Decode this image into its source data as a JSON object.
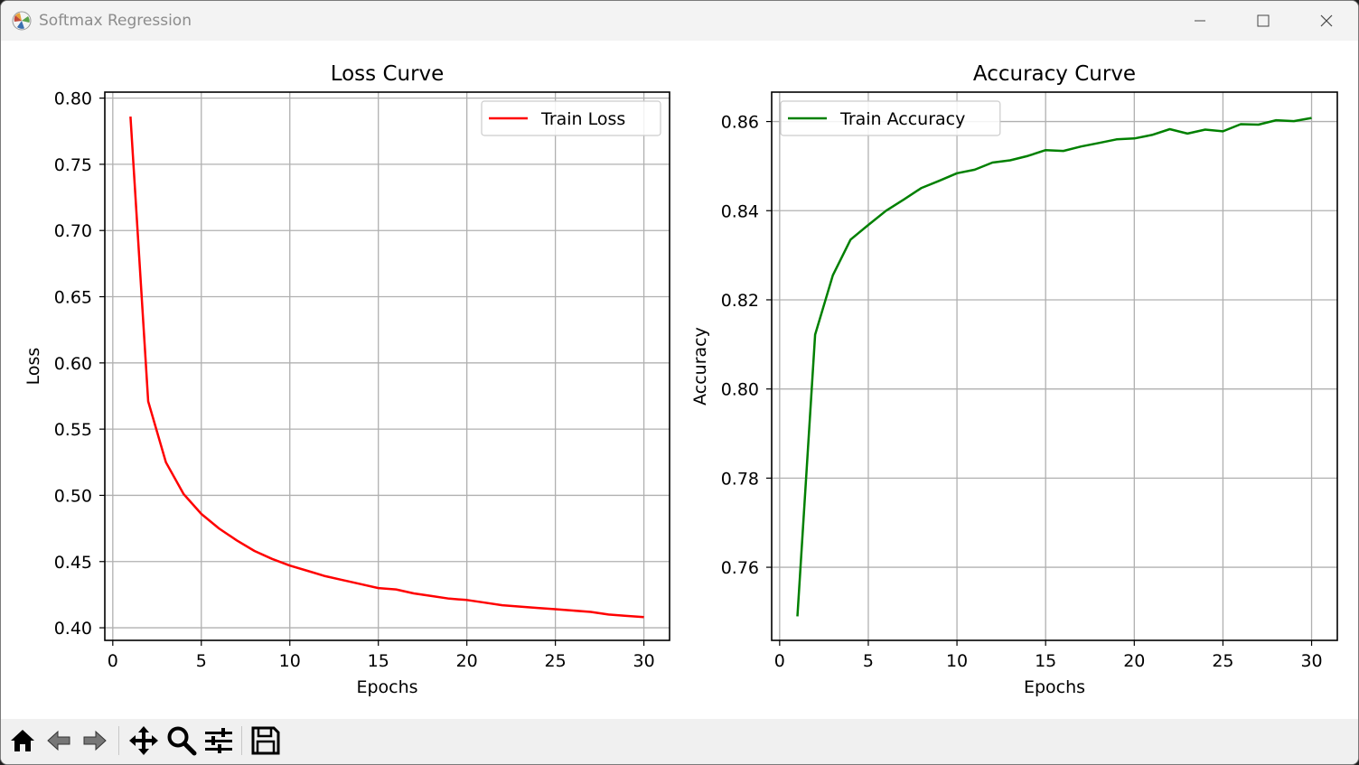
{
  "window": {
    "title": "Softmax Regression"
  },
  "toolbar": {
    "buttons": [
      {
        "name": "home-icon"
      },
      {
        "name": "back-arrow-icon"
      },
      {
        "name": "forward-arrow-icon"
      },
      {
        "name": "pan-move-icon"
      },
      {
        "name": "zoom-magnifier-icon"
      },
      {
        "name": "configure-subplots-icon"
      },
      {
        "name": "save-floppy-icon"
      }
    ]
  },
  "chart_data": [
    {
      "type": "line",
      "title": "Loss Curve",
      "xlabel": "Epochs",
      "ylabel": "Loss",
      "xlim": [
        -0.45,
        31.45
      ],
      "ylim": [
        0.3905,
        0.8045
      ],
      "xticks": [
        0,
        5,
        10,
        15,
        20,
        25,
        30
      ],
      "yticks": [
        0.4,
        0.45,
        0.5,
        0.55,
        0.6,
        0.65,
        0.7,
        0.75,
        0.8
      ],
      "ytick_labels": [
        "0.40",
        "0.45",
        "0.50",
        "0.55",
        "0.60",
        "0.65",
        "0.70",
        "0.75",
        "0.80"
      ],
      "grid": true,
      "legend": "top-right",
      "x": [
        1,
        2,
        3,
        4,
        5,
        6,
        7,
        8,
        9,
        10,
        11,
        12,
        13,
        14,
        15,
        16,
        17,
        18,
        19,
        20,
        21,
        22,
        23,
        24,
        25,
        26,
        27,
        28,
        29,
        30
      ],
      "series": [
        {
          "name": "Train Loss",
          "color": "#ff0000",
          "values": [
            0.786,
            0.571,
            0.525,
            0.501,
            0.486,
            0.475,
            0.466,
            0.458,
            0.452,
            0.447,
            0.443,
            0.439,
            0.436,
            0.433,
            0.43,
            0.429,
            0.426,
            0.424,
            0.422,
            0.421,
            0.419,
            0.417,
            0.416,
            0.415,
            0.414,
            0.413,
            0.412,
            0.41,
            0.409,
            0.408
          ]
        }
      ]
    },
    {
      "type": "line",
      "title": "Accuracy Curve",
      "xlabel": "Epochs",
      "ylabel": "Accuracy",
      "xlim": [
        -0.45,
        31.45
      ],
      "ylim": [
        0.7436,
        0.8666
      ],
      "xticks": [
        0,
        5,
        10,
        15,
        20,
        25,
        30
      ],
      "yticks": [
        0.76,
        0.78,
        0.8,
        0.82,
        0.84,
        0.86
      ],
      "ytick_labels": [
        "0.76",
        "0.78",
        "0.80",
        "0.82",
        "0.84",
        "0.86"
      ],
      "grid": true,
      "legend": "top-left",
      "x": [
        1,
        2,
        3,
        4,
        5,
        6,
        7,
        8,
        9,
        10,
        11,
        12,
        13,
        14,
        15,
        16,
        17,
        18,
        19,
        20,
        21,
        22,
        23,
        24,
        25,
        26,
        27,
        28,
        29,
        30
      ],
      "series": [
        {
          "name": "Train Accuracy",
          "color": "#008000",
          "values": [
            0.749,
            0.8122,
            0.8255,
            0.8335,
            0.8368,
            0.84,
            0.8425,
            0.8451,
            0.8467,
            0.8484,
            0.8492,
            0.8508,
            0.8513,
            0.8523,
            0.8536,
            0.8534,
            0.8544,
            0.8552,
            0.856,
            0.8562,
            0.857,
            0.8583,
            0.8573,
            0.8582,
            0.8578,
            0.8594,
            0.8593,
            0.8603,
            0.8601,
            0.8608
          ]
        }
      ]
    }
  ]
}
